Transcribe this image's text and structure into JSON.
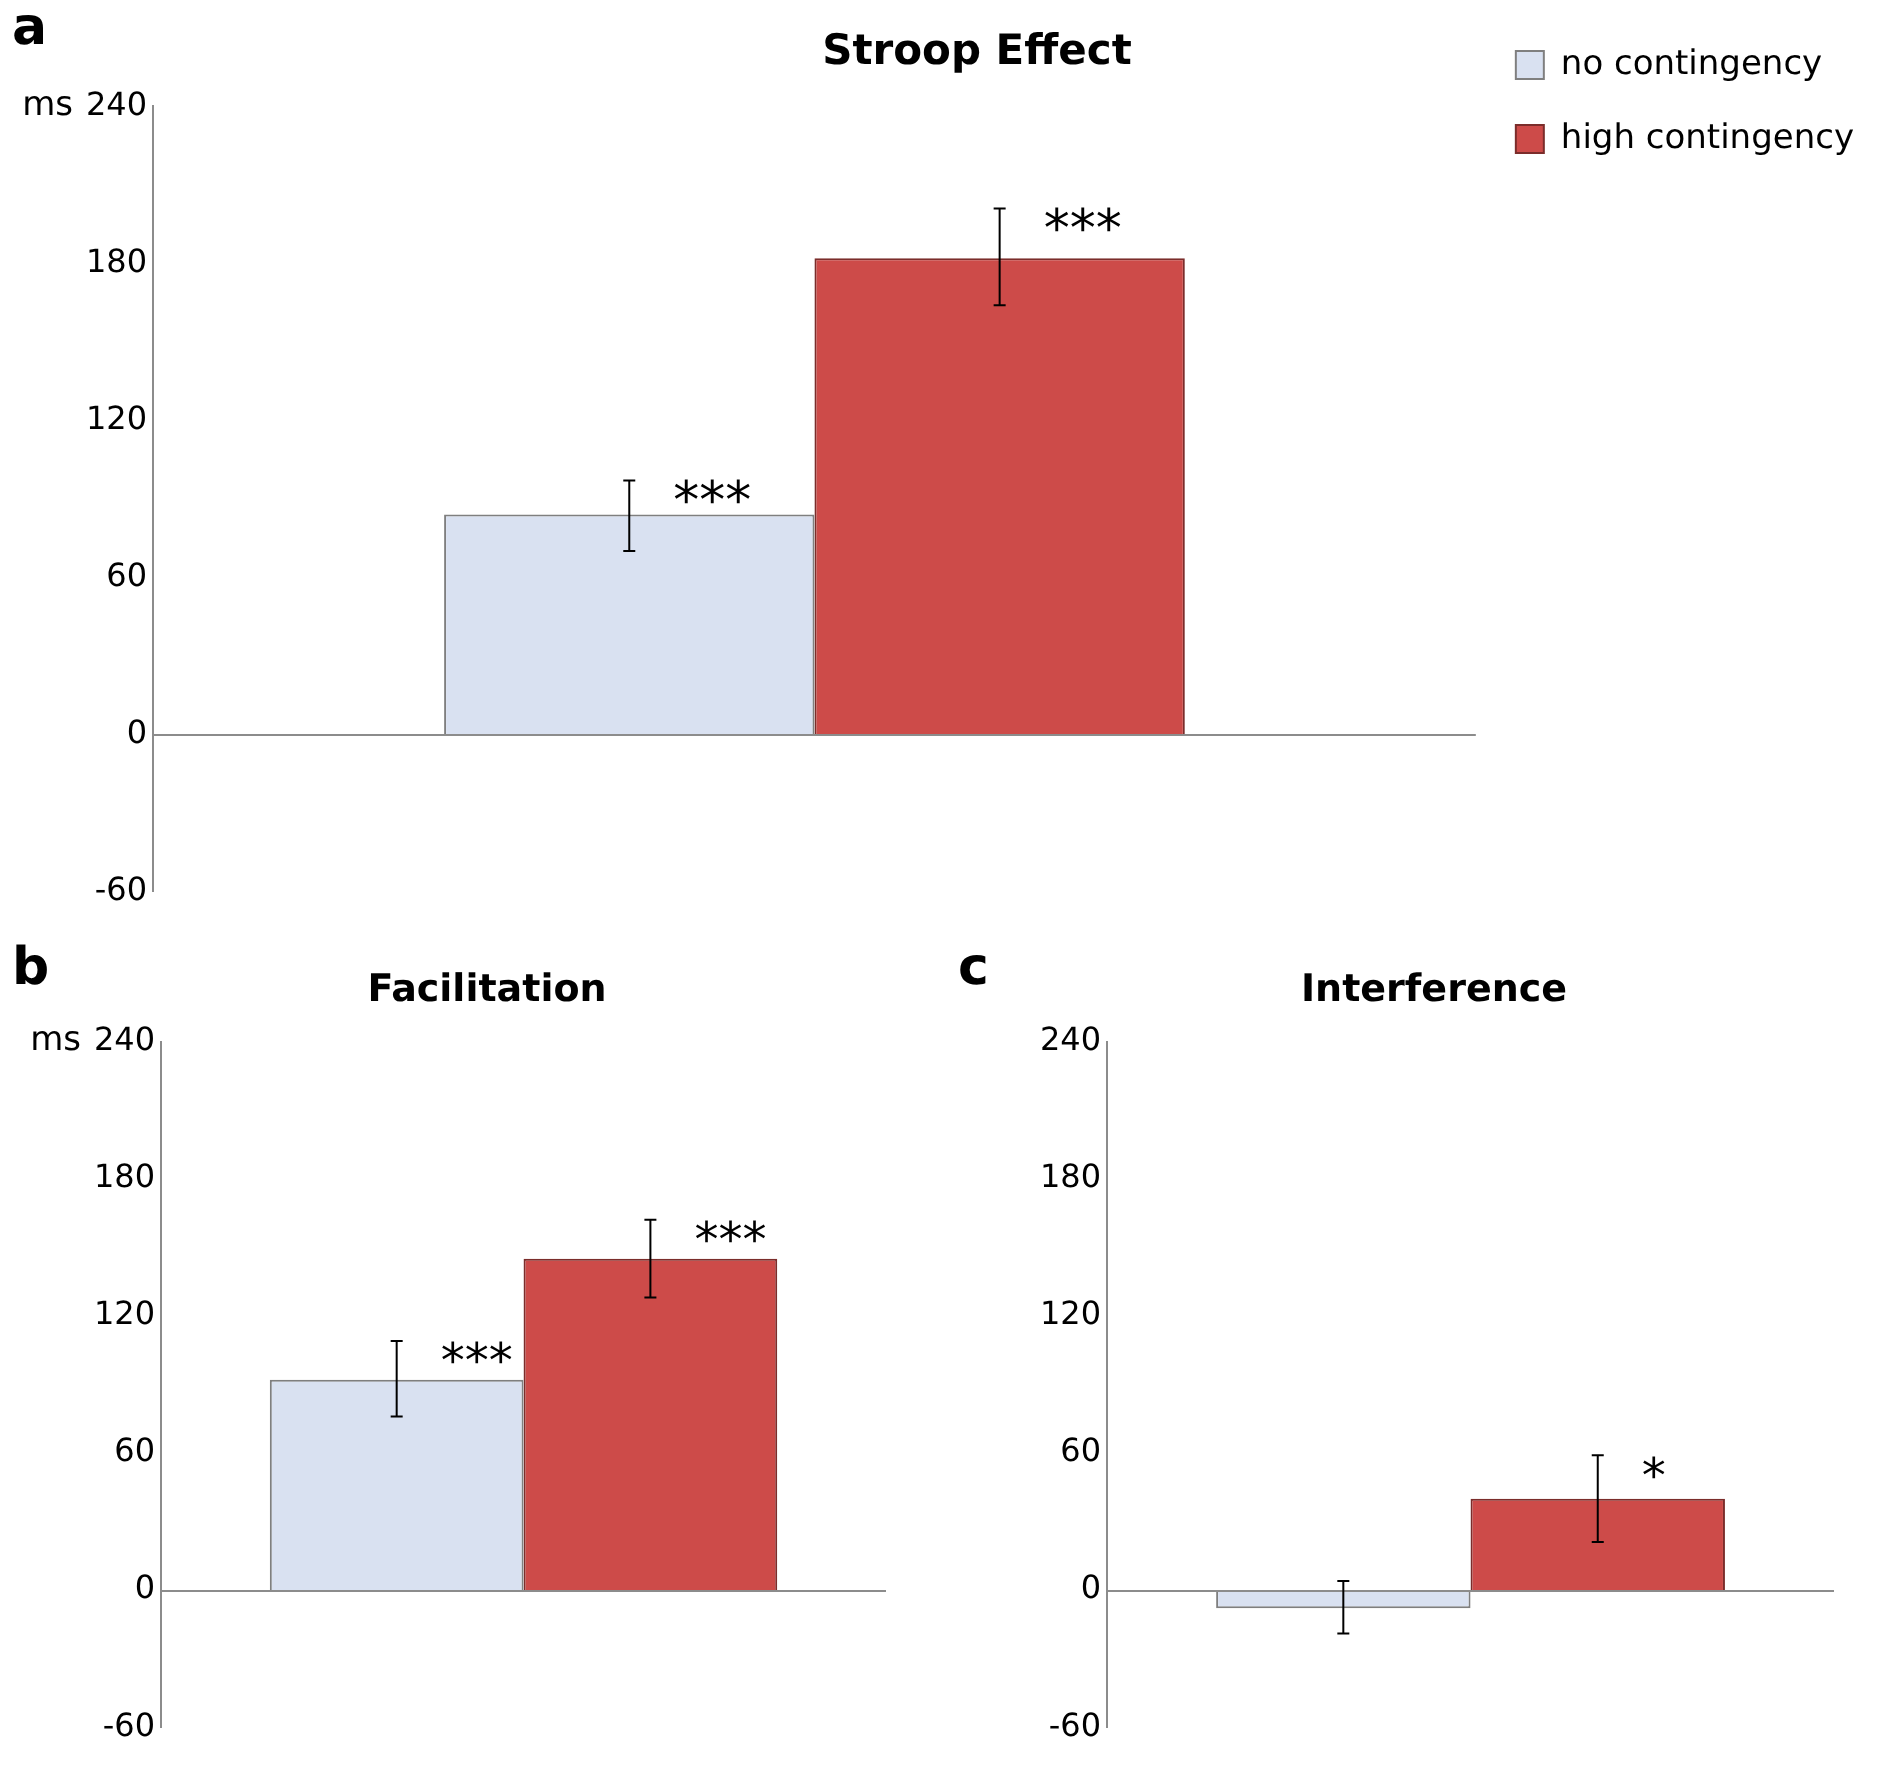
{
  "chart_data": [
    {
      "type": "bar",
      "title": "Stroop Effect",
      "ref_lines": [
        {
          "axis": "y",
          "value": 0,
          "color": "#8c8c8c"
        }
      ],
      "ylabel": "ms",
      "annotations": [
        "a"
      ],
      "categories": [
        null
      ],
      "ylim": [
        -60,
        240
      ],
      "yticks": [
        -60,
        0,
        60,
        120,
        180,
        240
      ],
      "grid": false,
      "legend": "top right",
      "series": [
        {
          "name": "no contingency",
          "color": "#d9e1f1",
          "values": [
            84
          ],
          "errors": [
            [
              70,
              97
            ]
          ],
          "value_labels": [
            "***"
          ]
        },
        {
          "name": "high contingency",
          "color": "#cd4b49",
          "values": [
            182
          ],
          "errors": [
            [
              164,
              201
            ]
          ],
          "value_labels": [
            "***"
          ]
        }
      ]
    },
    {
      "type": "bar",
      "title": "Facilitation",
      "ref_lines": [
        {
          "axis": "y",
          "value": 0,
          "color": "#8c8c8c"
        }
      ],
      "ylabel": "ms",
      "annotations": [
        "b"
      ],
      "categories": [
        null
      ],
      "ylim": [
        -60,
        240
      ],
      "yticks": [
        -60,
        0,
        60,
        120,
        180,
        240
      ],
      "grid": false,
      "legend": false,
      "series": [
        {
          "color": "#d9e1f1",
          "values": [
            92
          ],
          "errors": [
            [
              76,
              109
            ]
          ],
          "value_labels": [
            "***"
          ]
        },
        {
          "color": "#cd4b49",
          "values": [
            145
          ],
          "errors": [
            [
              128,
              162
            ]
          ],
          "value_labels": [
            "***"
          ]
        }
      ]
    },
    {
      "type": "bar",
      "title": "Interference",
      "ref_lines": [
        {
          "axis": "y",
          "value": 0,
          "color": "#8c8c8c"
        }
      ],
      "annotations": [
        "c"
      ],
      "categories": [
        null
      ],
      "ylim": [
        -60,
        240
      ],
      "yticks": [
        -60,
        0,
        60,
        120,
        180,
        240
      ],
      "grid": false,
      "legend": false,
      "series": [
        {
          "color": "#d9e1f1",
          "values": [
            -8
          ],
          "errors": [
            [
              -19,
              4
            ]
          ]
        },
        {
          "color": "#cd4b49",
          "values": [
            40
          ],
          "errors": [
            [
              21,
              59
            ]
          ],
          "value_labels": [
            "*"
          ]
        }
      ]
    }
  ]
}
